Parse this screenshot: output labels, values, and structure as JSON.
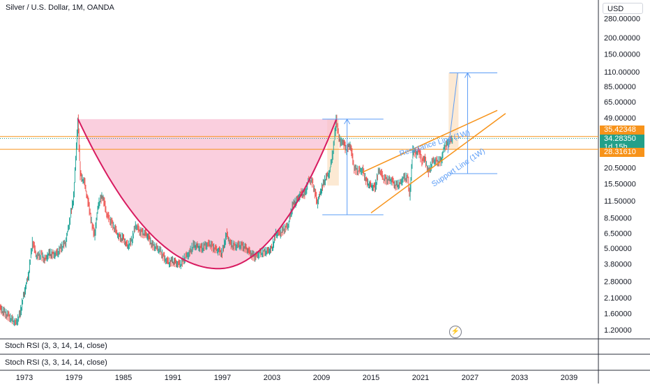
{
  "header": {
    "title": "Silver / U.S. Dollar, 1M, OANDA",
    "currency": "USD"
  },
  "indicators": [
    {
      "label": "Stoch RSI (3, 3, 14, 14, close)"
    },
    {
      "label": "Stoch RSI (3, 3, 14, 14, close)"
    }
  ],
  "price_tags": {
    "resistance_level": "35.42348",
    "last_price": "34.28350",
    "countdown": "1d 15h",
    "support_level": "28.31610"
  },
  "annotations": {
    "resistance_line": "Resistance Line (1W)",
    "support_line": "Support Line (1W)"
  },
  "colors": {
    "up": "#26a69a",
    "down": "#ef5350",
    "orange": "#f7931a",
    "blue": "#5b9cf6",
    "cup_fill": "#f8bbd0",
    "cup_line": "#d81b60",
    "last_price_tag": "#22a08a",
    "highlight": "#fbe3c8"
  },
  "chart_data": {
    "type": "candlestick",
    "title": "Silver / U.S. Dollar, 1M, OANDA",
    "scale": "log",
    "y_ticks": [
      280,
      200,
      150,
      110,
      85,
      65,
      49,
      35.42348,
      28.3161,
      20.5,
      15.5,
      11.5,
      8.5,
      6.5,
      5,
      3.8,
      2.8,
      2.1,
      1.6,
      1.2
    ],
    "y_tick_labels": [
      "280.00000",
      "200.00000",
      "150.00000",
      "110.00000",
      "85.00000",
      "65.00000",
      "49.00000",
      "35.42348",
      "28.31610",
      "20.50000",
      "15.50000",
      "11.50000",
      "8.50000",
      "6.50000",
      "5.00000",
      "3.80000",
      "2.80000",
      "2.10000",
      "1.60000",
      "1.20000"
    ],
    "x_ticks": [
      "1973",
      "1979",
      "1985",
      "1991",
      "1997",
      "2003",
      "2009",
      "2015",
      "2021",
      "2027",
      "2033",
      "2039"
    ],
    "ylim": [
      1.1,
      330
    ],
    "xlim": [
      1970.0,
      2043.0
    ],
    "series": [
      {
        "points": [
          [
            1970.0,
            1.85
          ],
          [
            1971.0,
            1.65
          ],
          [
            1972.0,
            1.45
          ],
          [
            1972.5,
            1.35
          ],
          [
            1973.0,
            1.6
          ],
          [
            1973.5,
            2.3
          ],
          [
            1974.0,
            3.1
          ],
          [
            1974.5,
            5.6
          ],
          [
            1975.0,
            4.3
          ],
          [
            1975.5,
            4.5
          ],
          [
            1976.0,
            4.1
          ],
          [
            1976.5,
            4.6
          ],
          [
            1977.0,
            4.5
          ],
          [
            1977.5,
            4.6
          ],
          [
            1978.0,
            5.1
          ],
          [
            1978.5,
            5.5
          ],
          [
            1979.0,
            8.0
          ],
          [
            1979.5,
            12.5
          ],
          [
            1980.0,
            48.0
          ],
          [
            1980.3,
            18.0
          ],
          [
            1980.8,
            16.0
          ],
          [
            1981.5,
            9.0
          ],
          [
            1982.0,
            6.2
          ],
          [
            1982.5,
            11.0
          ],
          [
            1983.0,
            12.5
          ],
          [
            1983.5,
            9.0
          ],
          [
            1984.0,
            8.0
          ],
          [
            1984.5,
            7.0
          ],
          [
            1985.0,
            6.1
          ],
          [
            1985.5,
            6.0
          ],
          [
            1986.0,
            5.2
          ],
          [
            1986.5,
            5.7
          ],
          [
            1987.0,
            7.5
          ],
          [
            1987.5,
            6.7
          ],
          [
            1988.0,
            6.5
          ],
          [
            1988.5,
            6.2
          ],
          [
            1989.0,
            5.3
          ],
          [
            1989.5,
            5.1
          ],
          [
            1990.0,
            4.8
          ],
          [
            1990.5,
            4.2
          ],
          [
            1991.0,
            3.9
          ],
          [
            1991.5,
            4.0
          ],
          [
            1992.0,
            3.8
          ],
          [
            1992.5,
            3.8
          ],
          [
            1993.0,
            4.3
          ],
          [
            1993.5,
            4.6
          ],
          [
            1994.0,
            5.3
          ],
          [
            1994.5,
            5.2
          ],
          [
            1995.0,
            5.0
          ],
          [
            1995.5,
            5.3
          ],
          [
            1996.0,
            5.4
          ],
          [
            1996.5,
            5.0
          ],
          [
            1997.0,
            4.8
          ],
          [
            1997.5,
            4.6
          ],
          [
            1998.0,
            6.5
          ],
          [
            1998.5,
            5.4
          ],
          [
            1999.0,
            5.2
          ],
          [
            1999.5,
            5.3
          ],
          [
            2000.0,
            5.2
          ],
          [
            2000.5,
            4.9
          ],
          [
            2001.0,
            4.5
          ],
          [
            2001.5,
            4.3
          ],
          [
            2002.0,
            4.6
          ],
          [
            2002.5,
            4.7
          ],
          [
            2003.0,
            4.8
          ],
          [
            2003.5,
            5.0
          ],
          [
            2004.0,
            6.5
          ],
          [
            2004.5,
            6.5
          ],
          [
            2005.0,
            7.0
          ],
          [
            2005.5,
            7.5
          ],
          [
            2006.0,
            10.5
          ],
          [
            2006.5,
            11.5
          ],
          [
            2007.0,
            13.2
          ],
          [
            2007.5,
            13.0
          ],
          [
            2008.0,
            17.0
          ],
          [
            2008.5,
            15.5
          ],
          [
            2009.0,
            11.0
          ],
          [
            2009.5,
            14.0
          ],
          [
            2010.0,
            17.0
          ],
          [
            2010.5,
            19.0
          ],
          [
            2011.0,
            30.0
          ],
          [
            2011.3,
            48.0
          ],
          [
            2011.5,
            39.0
          ],
          [
            2011.8,
            32.0
          ],
          [
            2012.0,
            34.0
          ],
          [
            2012.5,
            28.0
          ],
          [
            2013.0,
            30.5
          ],
          [
            2013.5,
            20.0
          ],
          [
            2014.0,
            19.5
          ],
          [
            2014.5,
            19.8
          ],
          [
            2015.0,
            16.0
          ],
          [
            2015.5,
            15.0
          ],
          [
            2016.0,
            14.5
          ],
          [
            2016.5,
            20.0
          ],
          [
            2017.0,
            17.0
          ],
          [
            2017.5,
            16.5
          ],
          [
            2018.0,
            16.5
          ],
          [
            2018.5,
            15.0
          ],
          [
            2019.0,
            15.5
          ],
          [
            2019.5,
            17.5
          ],
          [
            2020.0,
            17.0
          ],
          [
            2020.2,
            12.5
          ],
          [
            2020.6,
            28.0
          ],
          [
            2021.0,
            26.0
          ],
          [
            2021.3,
            27.5
          ],
          [
            2021.7,
            23.0
          ],
          [
            2022.0,
            24.0
          ],
          [
            2022.5,
            19.0
          ],
          [
            2023.0,
            23.5
          ],
          [
            2023.5,
            23.0
          ],
          [
            2024.0,
            23.0
          ],
          [
            2024.4,
            29.5
          ],
          [
            2024.8,
            31.0
          ],
          [
            2025.0,
            32.0
          ],
          [
            2025.4,
            34.3
          ]
        ]
      }
    ],
    "price_lines": [
      35.42348,
      28.3161,
      34.2835
    ],
    "cup": {
      "rim_start": [
        1980.0,
        48.0
      ],
      "rim_end": [
        2011.3,
        48.0
      ],
      "bottom": [
        1997.0,
        3.5
      ]
    },
    "channel": {
      "resistance": [
        [
          2014.5,
          19.0
        ],
        [
          2030.8,
          56.0
        ]
      ],
      "support": [
        [
          2015.5,
          9.3
        ],
        [
          2031.8,
          53.0
        ]
      ]
    },
    "measurements": [
      {
        "x": 2012.6,
        "from": 9.0,
        "to": 48.0,
        "x_from": 2009.6,
        "x_to": 2017.0
      },
      {
        "x": 2027.2,
        "from": 18.5,
        "to": 108.0,
        "x_from": 2025.0,
        "x_to": 2030.8
      }
    ],
    "projection_arrow": [
      [
        2024.8,
        26.5
      ],
      [
        2026.0,
        108.0
      ]
    ],
    "highlights": [
      {
        "x_from": 2010.2,
        "x_to": 2011.6,
        "from": 15.0,
        "to": 48.0
      },
      {
        "x_from": 2024.9,
        "x_to": 2026.1,
        "from": 28.3,
        "to": 108.0
      }
    ]
  }
}
